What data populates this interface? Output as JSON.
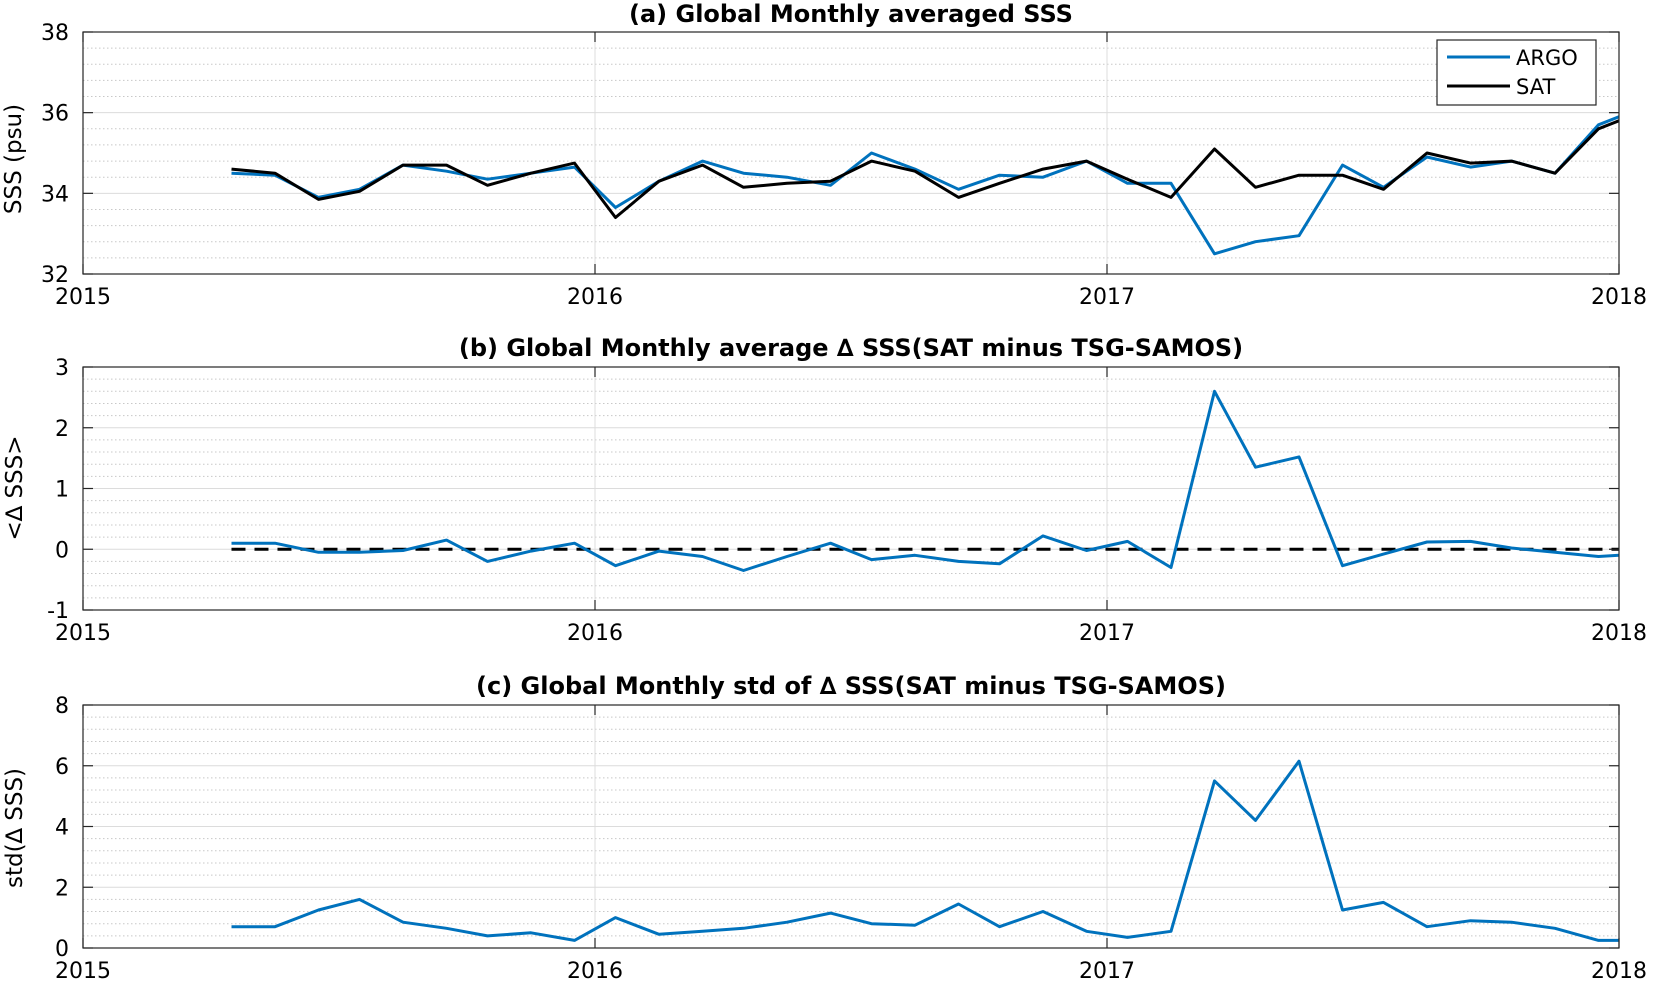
{
  "chart_data": [
    {
      "type": "line",
      "title": "(a) Global Monthly averaged SSS",
      "ylabel": "SSS (psu)",
      "xlim": [
        2015,
        2018
      ],
      "ylim": [
        32,
        38
      ],
      "xticks": [
        2015,
        2016,
        2017,
        2018
      ],
      "xtick_labels": [
        "2015",
        "2016",
        "2017",
        "2018"
      ],
      "yticks": [
        32,
        34,
        36,
        38
      ],
      "ytick_labels": [
        "32",
        "34",
        "36",
        "38"
      ],
      "grid": true,
      "minor_grid": true,
      "legend": "top-right",
      "x": [
        2015.29,
        2015.375,
        2015.46,
        2015.54,
        2015.625,
        2015.71,
        2015.79,
        2015.875,
        2015.96,
        2016.04,
        2016.125,
        2016.21,
        2016.29,
        2016.375,
        2016.46,
        2016.54,
        2016.625,
        2016.71,
        2016.79,
        2016.875,
        2016.96,
        2017.04,
        2017.125,
        2017.21,
        2017.29,
        2017.375,
        2017.46,
        2017.54,
        2017.625,
        2017.71,
        2017.79,
        2017.875,
        2017.96,
        2018.04
      ],
      "series": [
        {
          "name": "ARGO",
          "color": "#0072BD",
          "values": [
            34.5,
            34.45,
            33.9,
            34.1,
            34.7,
            34.55,
            34.35,
            34.5,
            34.65,
            33.65,
            34.3,
            34.8,
            34.5,
            34.4,
            34.2,
            35.0,
            34.6,
            34.1,
            34.45,
            34.4,
            34.8,
            34.25,
            34.25,
            32.5,
            32.8,
            32.95,
            34.7,
            34.15,
            34.9,
            34.65,
            34.8,
            34.5,
            35.7,
            36.1
          ]
        },
        {
          "name": "SAT",
          "color": "#000000",
          "values": [
            34.6,
            34.5,
            33.85,
            34.05,
            34.7,
            34.7,
            34.2,
            34.5,
            34.75,
            33.4,
            34.3,
            34.7,
            34.15,
            34.25,
            34.3,
            34.8,
            34.55,
            33.9,
            34.25,
            34.6,
            34.8,
            34.35,
            33.9,
            35.1,
            34.15,
            34.45,
            34.45,
            34.1,
            35.0,
            34.75,
            34.8,
            34.5,
            35.6,
            36.0
          ]
        }
      ]
    },
    {
      "type": "line",
      "title": "(b) Global Monthly average ∆ SSS(SAT minus TSG-SAMOS)",
      "ylabel": "<∆ SSS>",
      "xlim": [
        2015,
        2018
      ],
      "ylim": [
        -1,
        3
      ],
      "xticks": [
        2015,
        2016,
        2017,
        2018
      ],
      "xtick_labels": [
        "2015",
        "2016",
        "2017",
        "2018"
      ],
      "yticks": [
        -1,
        0,
        1,
        2,
        3
      ],
      "ytick_labels": [
        "-1",
        "0",
        "1",
        "2",
        "3"
      ],
      "grid": true,
      "minor_grid": true,
      "reference_line": {
        "y": 0,
        "style": "dashed",
        "color": "#000000"
      },
      "x": [
        2015.29,
        2015.375,
        2015.46,
        2015.54,
        2015.625,
        2015.71,
        2015.79,
        2015.875,
        2015.96,
        2016.04,
        2016.125,
        2016.21,
        2016.29,
        2016.375,
        2016.46,
        2016.54,
        2016.625,
        2016.71,
        2016.79,
        2016.875,
        2016.96,
        2017.04,
        2017.125,
        2017.21,
        2017.29,
        2017.375,
        2017.46,
        2017.54,
        2017.625,
        2017.71,
        2017.79,
        2017.875,
        2017.96,
        2018.04
      ],
      "series": [
        {
          "color": "#0072BD",
          "values": [
            0.1,
            0.1,
            -0.05,
            -0.05,
            -0.02,
            0.15,
            -0.2,
            -0.03,
            0.1,
            -0.27,
            -0.03,
            -0.12,
            -0.35,
            -0.12,
            0.1,
            -0.17,
            -0.1,
            -0.2,
            -0.24,
            0.22,
            -0.02,
            0.13,
            -0.3,
            2.6,
            1.35,
            1.52,
            -0.27,
            -0.08,
            0.12,
            0.13,
            0.02,
            -0.05,
            -0.12,
            -0.08
          ]
        }
      ]
    },
    {
      "type": "line",
      "title": "(c) Global Monthly std of ∆ SSS(SAT minus TSG-SAMOS)",
      "ylabel": "std(∆ SSS)",
      "xlim": [
        2015,
        2018
      ],
      "ylim": [
        0,
        8
      ],
      "xticks": [
        2015,
        2016,
        2017,
        2018
      ],
      "xtick_labels": [
        "2015",
        "2016",
        "2017",
        "2018"
      ],
      "yticks": [
        0,
        2,
        4,
        6,
        8
      ],
      "ytick_labels": [
        "0",
        "2",
        "4",
        "6",
        "8"
      ],
      "grid": true,
      "minor_grid": true,
      "x": [
        2015.29,
        2015.375,
        2015.46,
        2015.54,
        2015.625,
        2015.71,
        2015.79,
        2015.875,
        2015.96,
        2016.04,
        2016.125,
        2016.21,
        2016.29,
        2016.375,
        2016.46,
        2016.54,
        2016.625,
        2016.71,
        2016.79,
        2016.875,
        2016.96,
        2017.04,
        2017.125,
        2017.21,
        2017.29,
        2017.375,
        2017.46,
        2017.54,
        2017.625,
        2017.71,
        2017.79,
        2017.875,
        2017.96,
        2018.04
      ],
      "series": [
        {
          "color": "#0072BD",
          "values": [
            0.7,
            0.7,
            1.25,
            1.6,
            0.85,
            0.65,
            0.4,
            0.5,
            0.25,
            1.0,
            0.45,
            0.55,
            0.65,
            0.85,
            1.15,
            0.8,
            0.75,
            1.45,
            0.7,
            1.2,
            0.55,
            0.35,
            0.55,
            5.5,
            4.2,
            6.15,
            1.25,
            1.5,
            0.7,
            0.9,
            0.85,
            0.65,
            0.25,
            0.25
          ]
        }
      ]
    }
  ]
}
